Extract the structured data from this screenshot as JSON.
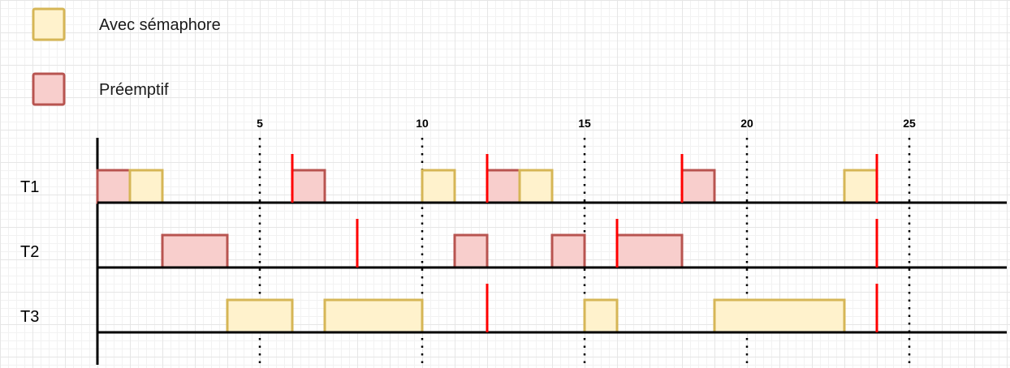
{
  "legend": [
    {
      "label": "Avec sémaphore",
      "kind": "semaphore"
    },
    {
      "label": "Préemptif",
      "kind": "preemptive"
    }
  ],
  "colors": {
    "semaphore_fill": "#fff2cc",
    "semaphore_stroke": "#d6b656",
    "preemptive_fill": "#f8cecc",
    "preemptive_stroke": "#b85450",
    "deadline": "#ff0000",
    "axis": "#000000"
  },
  "ticks": [
    {
      "t": 5,
      "label": "5"
    },
    {
      "t": 10,
      "label": "10"
    },
    {
      "t": 15,
      "label": "15"
    },
    {
      "t": 20,
      "label": "20"
    },
    {
      "t": 25,
      "label": "25"
    }
  ],
  "time_max": 28,
  "tasks": [
    {
      "name": "T1",
      "blocks": [
        {
          "start": 0,
          "end": 1,
          "kind": "preemptive"
        },
        {
          "start": 1,
          "end": 2,
          "kind": "semaphore"
        },
        {
          "start": 6,
          "end": 7,
          "kind": "preemptive"
        },
        {
          "start": 10,
          "end": 11,
          "kind": "semaphore"
        },
        {
          "start": 12,
          "end": 13,
          "kind": "preemptive"
        },
        {
          "start": 13,
          "end": 14,
          "kind": "semaphore"
        },
        {
          "start": 18,
          "end": 19,
          "kind": "preemptive"
        },
        {
          "start": 23,
          "end": 24,
          "kind": "semaphore"
        }
      ],
      "deadlines": [
        6,
        12,
        18,
        24
      ]
    },
    {
      "name": "T2",
      "blocks": [
        {
          "start": 2,
          "end": 4,
          "kind": "preemptive"
        },
        {
          "start": 11,
          "end": 12,
          "kind": "preemptive"
        },
        {
          "start": 14,
          "end": 15,
          "kind": "preemptive"
        },
        {
          "start": 16,
          "end": 18,
          "kind": "preemptive"
        }
      ],
      "deadlines": [
        8,
        16,
        24
      ]
    },
    {
      "name": "T3",
      "blocks": [
        {
          "start": 4,
          "end": 6,
          "kind": "semaphore"
        },
        {
          "start": 7,
          "end": 10,
          "kind": "semaphore"
        },
        {
          "start": 15,
          "end": 16,
          "kind": "semaphore"
        },
        {
          "start": 19,
          "end": 23,
          "kind": "semaphore"
        }
      ],
      "deadlines": [
        12,
        24
      ]
    }
  ]
}
